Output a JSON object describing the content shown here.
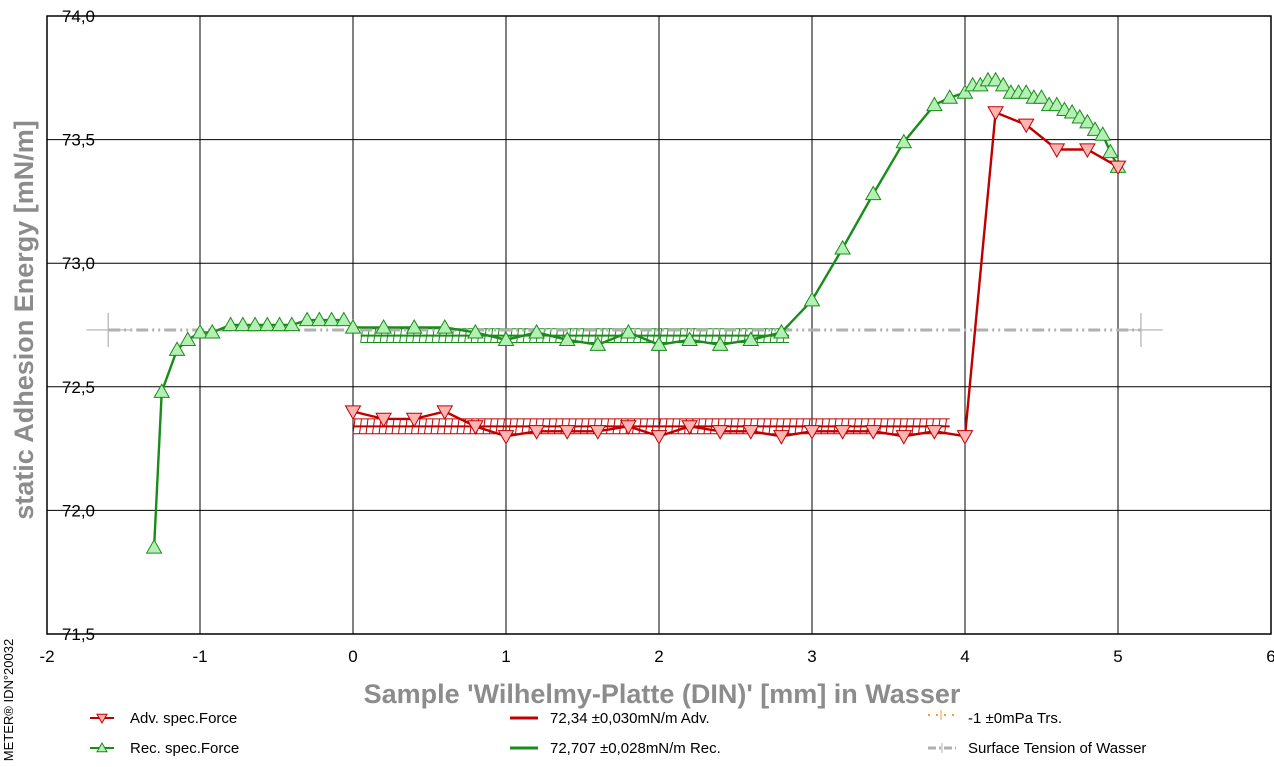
{
  "chart_data": {
    "type": "line",
    "xlabel": "Sample 'Wilhelmy-Platte (DIN)' [mm] in Wasser",
    "ylabel": "static Adhesion Energy [mN/m]",
    "side_label": "METER® IDN°20032",
    "xlim": [
      -2,
      6
    ],
    "ylim": [
      71.5,
      74.0
    ],
    "x_ticks": [
      "-2",
      "-1",
      "0",
      "1",
      "2",
      "3",
      "4",
      "5",
      "6"
    ],
    "y_ticks": [
      "71,5",
      "72,0",
      "72,5",
      "73,0",
      "73,5",
      "74,0"
    ],
    "grid": true,
    "colors": {
      "advancing": "#c00000",
      "advancing_fill": "#ffb3b3",
      "receding": "#1a8c1a",
      "receding_fill": "#b3f0b3",
      "surface_tension": "#b0b0b0",
      "transition": "#f0a040"
    },
    "series": [
      {
        "name": "Rec. spec.Force",
        "marker": "triangle-up",
        "x": [
          -1.3,
          -1.25,
          -1.15,
          -1.08,
          -1.0,
          -0.92,
          -0.8,
          -0.72,
          -0.64,
          -0.56,
          -0.48,
          -0.4,
          -0.3,
          -0.22,
          -0.14,
          -0.06,
          0.0,
          0.2,
          0.4,
          0.6,
          0.8,
          1.0,
          1.2,
          1.4,
          1.6,
          1.8,
          2.0,
          2.2,
          2.4,
          2.6,
          2.8,
          3.0,
          3.2,
          3.4,
          3.6,
          3.8,
          3.9,
          4.0,
          4.05,
          4.1,
          4.15,
          4.2,
          4.25,
          4.3,
          4.35,
          4.4,
          4.45,
          4.5,
          4.55,
          4.6,
          4.65,
          4.7,
          4.75,
          4.8,
          4.85,
          4.9,
          4.95,
          5.0
        ],
        "values": [
          71.85,
          72.48,
          72.65,
          72.69,
          72.72,
          72.72,
          72.75,
          72.75,
          72.75,
          72.75,
          72.75,
          72.75,
          72.77,
          72.77,
          72.77,
          72.77,
          72.74,
          72.74,
          72.74,
          72.74,
          72.72,
          72.69,
          72.72,
          72.69,
          72.67,
          72.72,
          72.67,
          72.69,
          72.67,
          72.69,
          72.72,
          72.85,
          73.06,
          73.28,
          73.49,
          73.64,
          73.67,
          73.69,
          73.72,
          73.72,
          73.74,
          73.74,
          73.72,
          73.69,
          73.69,
          73.69,
          73.67,
          73.67,
          73.64,
          73.64,
          73.62,
          73.61,
          73.59,
          73.57,
          73.54,
          73.52,
          73.45,
          73.39
        ]
      },
      {
        "name": "Adv. spec.Force",
        "marker": "triangle-down",
        "x": [
          0.0,
          0.2,
          0.4,
          0.6,
          0.8,
          1.0,
          1.2,
          1.4,
          1.6,
          1.8,
          2.0,
          2.2,
          2.4,
          2.6,
          2.8,
          3.0,
          3.2,
          3.4,
          3.6,
          3.8,
          4.0,
          4.2,
          4.4,
          4.6,
          4.8,
          5.0
        ],
        "values": [
          72.4,
          72.37,
          72.37,
          72.4,
          72.34,
          72.3,
          72.32,
          72.32,
          72.32,
          72.34,
          72.3,
          72.34,
          72.32,
          72.32,
          72.3,
          72.32,
          72.32,
          72.32,
          72.3,
          72.32,
          72.3,
          73.61,
          73.56,
          73.46,
          73.46,
          73.39
        ]
      }
    ],
    "fits": [
      {
        "label": "72,34 ±0,030mN/m Adv.",
        "mean": 72.34,
        "err": 0.03,
        "x_range": [
          0.0,
          3.9
        ]
      },
      {
        "label": "72,707 ±0,028mN/m Rec.",
        "mean": 72.707,
        "err": 0.028,
        "x_range": [
          0.05,
          2.85
        ]
      }
    ],
    "surface_tension": {
      "label": "Surface Tension of Wasser",
      "value": 72.73,
      "x_range": [
        -1.6,
        5.15
      ]
    },
    "transition": {
      "label": "-1 ±0mPa Trs."
    },
    "legend": [
      {
        "label": "Adv. spec.Force",
        "kind": "advancing-marker"
      },
      {
        "label": "72,34 ±0,030mN/m Adv.",
        "kind": "advancing-line"
      },
      {
        "label": "-1 ±0mPa Trs.",
        "kind": "transition"
      },
      {
        "label": "Rec. spec.Force",
        "kind": "receding-marker"
      },
      {
        "label": "72,707 ±0,028mN/m Rec.",
        "kind": "receding-line"
      },
      {
        "label": "Surface Tension of Wasser",
        "kind": "surface-tension"
      }
    ]
  }
}
